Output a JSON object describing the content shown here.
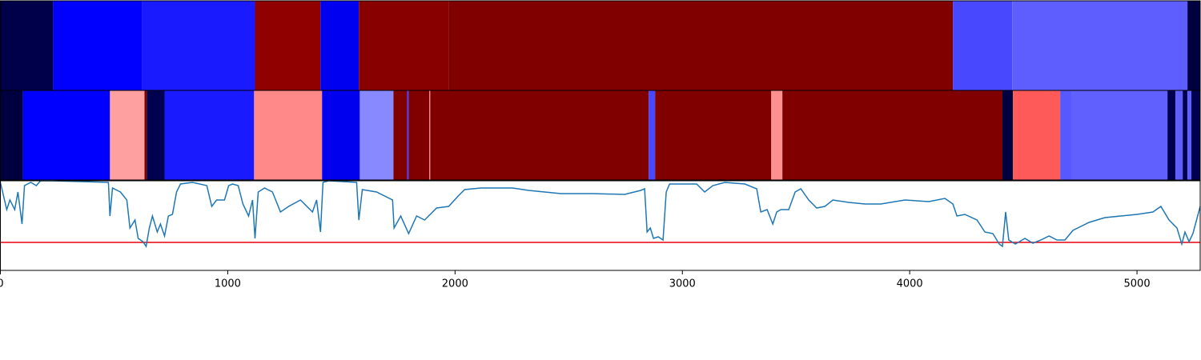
{
  "chart_data": [
    {
      "type": "segments",
      "xlim": [
        0,
        5278
      ],
      "edges": [
        0,
        232,
        623,
        1120,
        1408,
        1577,
        1972,
        4190,
        4451,
        5222,
        5278
      ],
      "colors": [
        "#00004a",
        "#0000ff",
        "#1a1aff",
        "#900000",
        "#0000f0",
        "#880000",
        "#800000",
        "#4848ff",
        "#5e5eff",
        "#000040"
      ]
    },
    {
      "type": "segments",
      "xlim": [
        0,
        5278
      ],
      "edges": [
        0,
        99,
        482,
        634,
        644,
        722,
        1116,
        1415,
        1581,
        1729,
        1789,
        1796,
        1887,
        1891,
        2852,
        2880,
        3391,
        3440,
        4408,
        4454,
        4662,
        4711,
        5134,
        5169,
        5201,
        5222,
        5239,
        5278
      ],
      "colors": [
        "#000040",
        "#0000ff",
        "#ffa0a0",
        "#800000",
        "#000050",
        "#1a1aff",
        "#ff8888",
        "#0000ee",
        "#8888ff",
        "#800000",
        "#4040ff",
        "#800000",
        "#ff9090",
        "#800000",
        "#4848ff",
        "#800000",
        "#ff9090",
        "#800000",
        "#000040",
        "#ff5a5a",
        "#5858ff",
        "#6060ff",
        "#000050",
        "#5e5eff",
        "#000050",
        "#5e5eff",
        "#000050"
      ]
    },
    {
      "type": "line",
      "xlim": [
        0,
        5278
      ],
      "ylim": [
        0,
        112
      ],
      "xticks": [
        0,
        1000,
        2000,
        3000,
        4000,
        5000
      ],
      "x": [
        0,
        28,
        42,
        63,
        77,
        95,
        106,
        134,
        158,
        176,
        229,
        475,
        482,
        493,
        528,
        556,
        570,
        592,
        606,
        627,
        641,
        655,
        669,
        690,
        704,
        722,
        739,
        757,
        775,
        792,
        845,
        908,
        930,
        951,
        986,
        1004,
        1021,
        1046,
        1067,
        1092,
        1109,
        1120,
        1134,
        1162,
        1197,
        1232,
        1268,
        1320,
        1373,
        1391,
        1408,
        1419,
        1444,
        1567,
        1577,
        1592,
        1655,
        1725,
        1732,
        1761,
        1796,
        1831,
        1866,
        1919,
        1972,
        2014,
        2042,
        2113,
        2253,
        2324,
        2465,
        2606,
        2746,
        2817,
        2834,
        2845,
        2859,
        2873,
        2894,
        2915,
        2929,
        2944,
        3063,
        3098,
        3134,
        3187,
        3275,
        3327,
        3345,
        3373,
        3398,
        3415,
        3433,
        3468,
        3496,
        3521,
        3556,
        3591,
        3627,
        3662,
        3732,
        3803,
        3873,
        3979,
        4084,
        4155,
        4190,
        4208,
        4243,
        4296,
        4331,
        4366,
        4394,
        4408,
        4422,
        4436,
        4465,
        4507,
        4542,
        4577,
        4613,
        4648,
        4683,
        4718,
        4789,
        4859,
        4929,
        5000,
        5070,
        5105,
        5141,
        5176,
        5197,
        5211,
        5229,
        5246,
        5278
      ],
      "series": [
        {
          "color": "#1f77b4",
          "values": [
            110,
            76,
            88,
            76,
            98,
            58,
            106,
            110,
            106,
            112,
            112,
            110,
            68,
            103,
            98,
            88,
            53,
            63,
            40,
            36,
            30,
            53,
            68,
            48,
            58,
            43,
            68,
            70,
            98,
            108,
            110,
            106,
            80,
            88,
            88,
            106,
            108,
            106,
            83,
            68,
            88,
            40,
            98,
            103,
            98,
            73,
            80,
            88,
            73,
            88,
            48,
            110,
            112,
            110,
            63,
            101,
            98,
            88,
            53,
            68,
            46,
            68,
            63,
            78,
            80,
            93,
            101,
            103,
            103,
            100,
            96,
            96,
            95,
            100,
            102,
            48,
            53,
            40,
            42,
            38,
            98,
            108,
            108,
            98,
            106,
            110,
            108,
            102,
            73,
            76,
            58,
            73,
            76,
            76,
            98,
            102,
            88,
            78,
            80,
            88,
            85,
            83,
            83,
            88,
            86,
            90,
            83,
            68,
            70,
            63,
            48,
            46,
            33,
            30,
            73,
            38,
            33,
            40,
            34,
            38,
            43,
            38,
            38,
            50,
            60,
            66,
            68,
            70,
            73,
            80,
            63,
            53,
            33,
            48,
            36,
            46,
            80
          ]
        }
      ],
      "hlines": [
        {
          "value": 35,
          "color": "#e8000b"
        }
      ]
    }
  ]
}
